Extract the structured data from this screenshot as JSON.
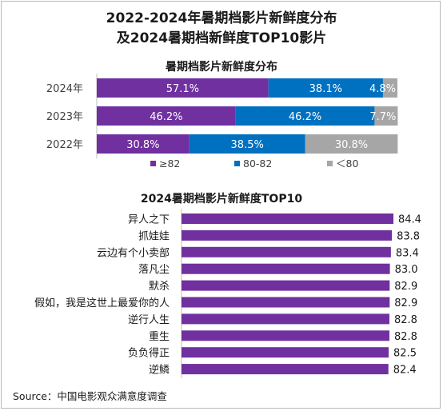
{
  "title_line1": "2022-2024年暑期档影片新鲜度分布",
  "title_line2": "及2024暑期档新鲜度TOP10影片",
  "source": "Source：中国电影观众满意度调查",
  "chart_data": [
    {
      "type": "bar",
      "orientation": "horizontal",
      "stacked": true,
      "percent": true,
      "title": "暑期档影片新鲜度分布",
      "categories": [
        "2024年",
        "2023年",
        "2022年"
      ],
      "series": [
        {
          "name": "≥82",
          "color": "#7030a0",
          "values": [
            57.1,
            46.2,
            30.8
          ],
          "labels": [
            "57.1%",
            "46.2%",
            "30.8%"
          ]
        },
        {
          "name": "80-82",
          "color": "#0070c0",
          "values": [
            38.1,
            46.2,
            38.5
          ],
          "labels": [
            "38.1%",
            "46.2%",
            "38.5%"
          ]
        },
        {
          "name": "＜80",
          "color": "#a6a6a6",
          "values": [
            4.8,
            7.7,
            30.8
          ],
          "labels": [
            "4.8%",
            "7.7%",
            "30.8%"
          ]
        }
      ],
      "legend": "bottom"
    },
    {
      "type": "bar",
      "orientation": "horizontal",
      "title": "2024暑期档影片新鲜度TOP10",
      "color": "#7030a0",
      "categories": [
        "异人之下",
        "抓娃娃",
        "云边有个小卖部",
        "落凡尘",
        "默杀",
        "假如，我是这世上最爱你的人",
        "逆行人生",
        "重生",
        "负负得正",
        "逆鳞"
      ],
      "values": [
        84.4,
        83.8,
        83.4,
        83.0,
        82.9,
        82.9,
        82.8,
        82.8,
        82.5,
        82.4
      ],
      "labels": [
        "84.4",
        "83.8",
        "83.4",
        "83.0",
        "82.9",
        "82.9",
        "82.8",
        "82.8",
        "82.5",
        "82.4"
      ]
    }
  ]
}
